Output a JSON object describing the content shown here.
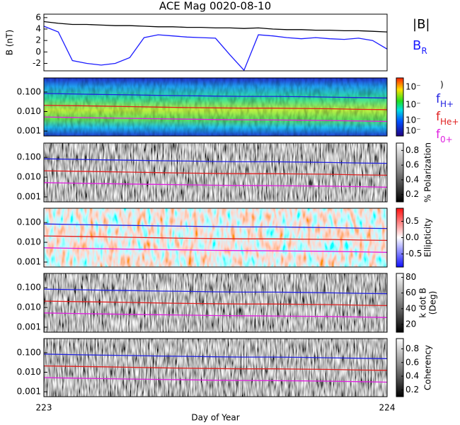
{
  "chart_data": [
    {
      "type": "line",
      "title": "ACE Mag 0020-08-10",
      "ylabel": "B (nT)",
      "x": [
        223,
        223.042,
        223.083,
        223.125,
        223.167,
        223.208,
        223.25,
        223.292,
        223.333,
        223.375,
        223.417,
        223.458,
        223.5,
        223.542,
        223.583,
        223.625,
        223.667,
        223.708,
        223.75,
        223.792,
        223.833,
        223.875,
        223.917,
        223.958,
        224
      ],
      "series": [
        {
          "name": "|B|",
          "color": "#000000",
          "values": [
            5.3,
            5.0,
            4.8,
            4.8,
            4.7,
            4.6,
            4.6,
            4.5,
            4.4,
            4.4,
            4.3,
            4.3,
            4.2,
            4.2,
            4.1,
            4.2,
            4.0,
            3.9,
            3.9,
            3.8,
            3.8,
            3.7,
            3.7,
            3.6,
            3.5
          ]
        },
        {
          "name": "BR",
          "color": "#1a1aff",
          "values": [
            4.5,
            3.5,
            -1.5,
            -2.0,
            -2.3,
            -2.0,
            -1.0,
            2.5,
            3.0,
            2.8,
            2.6,
            2.5,
            2.4,
            -0.5,
            -3.2,
            3.0,
            2.8,
            2.5,
            2.3,
            2.5,
            2.3,
            2.2,
            2.4,
            2.0,
            0.5
          ]
        }
      ],
      "xlim": [
        223,
        224
      ],
      "ylim": [
        -3.3,
        6.6
      ],
      "yticks": [
        -2,
        0,
        2,
        4,
        6
      ]
    },
    {
      "type": "spectrogram",
      "colorscale": "rainbow",
      "colorbar_label": ")",
      "colorbar_labels": [
        "10⁻",
        "10⁻",
        "10⁻",
        "10⁻"
      ],
      "x": [
        223,
        223.08,
        223.17,
        223.25,
        223.33,
        223.42,
        223.5,
        223.58,
        223.67,
        223.75,
        223.83,
        223.92,
        224
      ],
      "series": [
        {
          "name": "fH+",
          "color": "#2020e0",
          "values": [
            0.085,
            0.08,
            0.075,
            0.072,
            0.068,
            0.065,
            0.062,
            0.06,
            0.06,
            0.058,
            0.055,
            0.052,
            0.05
          ]
        },
        {
          "name": "fHe+",
          "color": "#e02020",
          "values": [
            0.021,
            0.02,
            0.019,
            0.018,
            0.017,
            0.016,
            0.0155,
            0.015,
            0.015,
            0.0145,
            0.014,
            0.013,
            0.0125
          ]
        },
        {
          "name": "f0+",
          "color": "#e020e0",
          "values": [
            0.0053,
            0.005,
            0.0047,
            0.0045,
            0.0043,
            0.0041,
            0.0039,
            0.0038,
            0.0037,
            0.0036,
            0.0035,
            0.0033,
            0.0031
          ]
        }
      ],
      "xlim": [
        223,
        224
      ],
      "ylim": [
        0.00056,
        0.53
      ],
      "log_y": true,
      "yticks": [
        {
          "value": 0.001,
          "label": "0.001"
        },
        {
          "value": 0.01,
          "label": "0.010"
        },
        {
          "value": 0.1,
          "label": "0.100"
        }
      ]
    },
    {
      "type": "spectrogram",
      "colorscale": "gray",
      "colorbar_label": "% Polarization",
      "clim": [
        0.1,
        0.9
      ],
      "colorbar_ticks": [
        0.2,
        0.4,
        0.6,
        0.8
      ],
      "xlim": [
        223,
        224
      ],
      "ylim": [
        0.00056,
        0.53
      ],
      "log_y": true,
      "yticks": [
        {
          "value": 0.001,
          "label": "0.001"
        },
        {
          "value": 0.01,
          "label": "0.010"
        },
        {
          "value": 0.1,
          "label": "0.100"
        }
      ]
    },
    {
      "type": "spectrogram",
      "colorscale": "bwr",
      "colorbar_label": "Ellipticity",
      "clim": [
        -0.9,
        0.9
      ],
      "colorbar_ticks": [
        -0.5,
        {
          "value": 0,
          "label": "0.0"
        },
        0.5
      ],
      "xlim": [
        223,
        224
      ],
      "ylim": [
        0.00056,
        0.53
      ],
      "log_y": true,
      "yticks": [
        {
          "value": 0.001,
          "label": "0.001"
        },
        {
          "value": 0.01,
          "label": "0.010"
        },
        {
          "value": 0.1,
          "label": "0.100"
        }
      ]
    },
    {
      "type": "spectrogram",
      "colorscale": "gray",
      "colorbar_label": [
        "k dot B",
        "(Deg)"
      ],
      "clim": [
        10,
        85
      ],
      "colorbar_ticks": [
        20,
        40,
        60,
        80
      ],
      "xlim": [
        223,
        224
      ],
      "ylim": [
        0.00056,
        0.53
      ],
      "log_y": true,
      "yticks": [
        {
          "value": 0.001,
          "label": "0.001"
        },
        {
          "value": 0.01,
          "label": "0.010"
        },
        {
          "value": 0.1,
          "label": "0.100"
        }
      ]
    },
    {
      "type": "spectrogram",
      "colorscale": "gray",
      "colorbar_label": "Coherency",
      "clim": [
        0.1,
        0.95
      ],
      "colorbar_ticks": [
        0.2,
        0.4,
        0.6,
        0.8
      ],
      "xlim": [
        223,
        224
      ],
      "ylim": [
        0.00056,
        0.53
      ],
      "log_y": true,
      "yticks": [
        {
          "value": 0.001,
          "label": "0.001"
        },
        {
          "value": 0.01,
          "label": "0.010"
        },
        {
          "value": 0.1,
          "label": "0.100"
        }
      ],
      "xlabel": "Day of Year",
      "xticks": [
        223,
        224
      ]
    }
  ]
}
